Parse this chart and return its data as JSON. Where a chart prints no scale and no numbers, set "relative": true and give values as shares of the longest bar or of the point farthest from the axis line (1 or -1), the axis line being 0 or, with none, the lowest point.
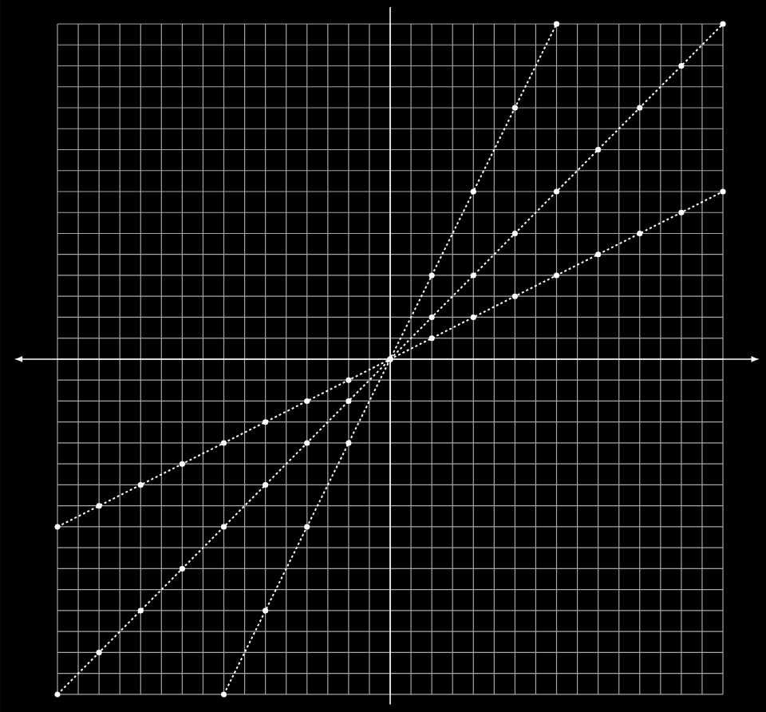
{
  "chart_data": {
    "type": "line",
    "relative": true,
    "grid": true,
    "marker": "circle",
    "line_style": "dotted",
    "categories": [
      null,
      null,
      null,
      null,
      null,
      null,
      null,
      null,
      null,
      null,
      null,
      null,
      null,
      null,
      null,
      null,
      null
    ],
    "series": [
      {
        "color": "#ffffff",
        "values": [
          -1,
          -0.875,
          -0.75,
          -0.625,
          -0.5,
          -0.375,
          -0.25,
          -0.125,
          0,
          0.125,
          0.25,
          0.375,
          0.5,
          0.625,
          0.75,
          0.875,
          1
        ]
      },
      {
        "color": "#ffffff",
        "values": [
          -0.5,
          -0.4375,
          -0.375,
          -0.3125,
          -0.25,
          -0.1875,
          -0.125,
          -0.0625,
          0,
          0.0625,
          0.125,
          0.1875,
          0.25,
          0.3125,
          0.375,
          0.4375,
          0.5
        ]
      },
      {
        "color": "#ffffff",
        "values": [
          null,
          null,
          null,
          null,
          -1,
          -0.75,
          -0.5,
          -0.25,
          0,
          0.25,
          0.5,
          0.75,
          1,
          null,
          null,
          null,
          null
        ]
      }
    ]
  }
}
